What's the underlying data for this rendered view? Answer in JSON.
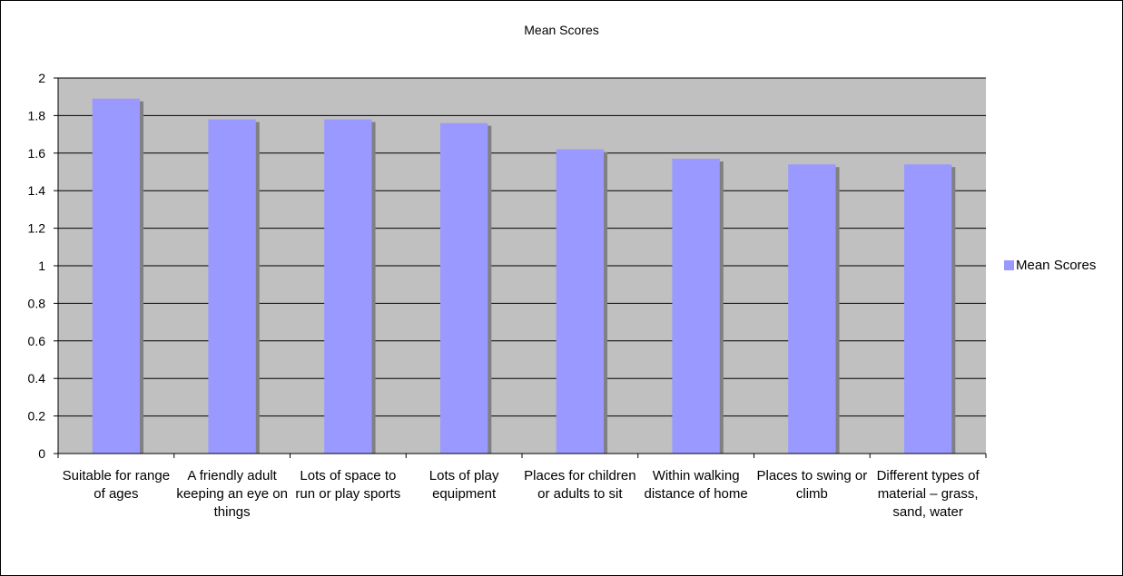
{
  "chart_data": {
    "type": "bar",
    "title": "Mean Scores",
    "categories": [
      "Suitable for range of ages",
      "A friendly adult keeping an eye on things",
      "Lots of space to run or play sports",
      "Lots of play equipment",
      "Places for children or adults to sit",
      "Within walking distance of home",
      "Places to swing or climb",
      "Different types of material – grass, sand, water"
    ],
    "series": [
      {
        "name": "Mean Scores",
        "values": [
          1.89,
          1.78,
          1.78,
          1.76,
          1.62,
          1.57,
          1.54,
          1.54
        ]
      }
    ],
    "ylim": [
      0,
      2
    ],
    "yticks": [
      "0",
      "0.2",
      "0.4",
      "0.6",
      "0.8",
      "1",
      "1.2",
      "1.4",
      "1.6",
      "1.8",
      "2"
    ],
    "grid": true,
    "legend": "right",
    "colors": {
      "bar": "#9999ff",
      "bar_shadow": "#808080",
      "plot_bg": "#c0c0c0",
      "gridline": "#000000"
    }
  }
}
